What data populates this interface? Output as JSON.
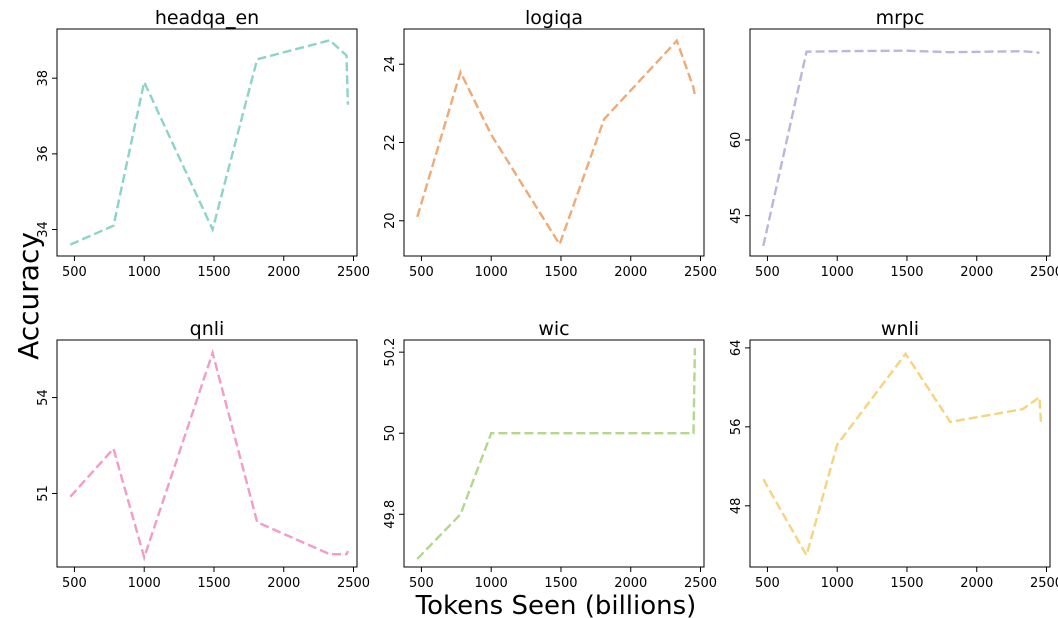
{
  "figure": {
    "ylabel": "Accuracy",
    "xlabel": "Tokens Seen (billions)"
  },
  "chart_data": [
    {
      "type": "line",
      "title": "headqa_en",
      "color": "#8dd3c7",
      "xlim": [
        375,
        2525
      ],
      "ylim": [
        33.3,
        39.3
      ],
      "xticks": [
        500,
        1000,
        1500,
        2000,
        2500
      ],
      "yticks": [
        34,
        36,
        38
      ],
      "x": [
        470,
        780,
        1000,
        1490,
        1810,
        2330,
        2450,
        2460
      ],
      "y": [
        33.6,
        34.1,
        37.9,
        34.0,
        38.5,
        39.0,
        38.6,
        37.3
      ]
    },
    {
      "type": "line",
      "title": "logiqa",
      "color": "#eeaa77",
      "xlim": [
        375,
        2525
      ],
      "ylim": [
        19.1,
        24.9
      ],
      "xticks": [
        500,
        1000,
        1500,
        2000,
        2500
      ],
      "yticks": [
        20,
        22,
        24
      ],
      "x": [
        470,
        780,
        1000,
        1490,
        1810,
        2330,
        2450,
        2460
      ],
      "y": [
        20.1,
        23.8,
        22.2,
        19.4,
        22.6,
        24.6,
        23.4,
        23.2
      ]
    },
    {
      "type": "line",
      "title": "mrpc",
      "color": "#bcb6dc",
      "xlim": [
        375,
        2525
      ],
      "ylim": [
        37,
        82
      ],
      "xticks": [
        500,
        1000,
        1500,
        2000,
        2500
      ],
      "yticks": [
        45,
        60
      ],
      "x": [
        470,
        780,
        1000,
        1490,
        1810,
        2330,
        2450
      ],
      "y": [
        39.0,
        77.5,
        77.6,
        77.7,
        77.4,
        77.6,
        77.3
      ]
    },
    {
      "type": "line",
      "title": "qnli",
      "color": "#f39cc7",
      "xlim": [
        375,
        2525
      ],
      "ylim": [
        48.7,
        55.8
      ],
      "xticks": [
        500,
        1000,
        1500,
        2000,
        2500
      ],
      "yticks": [
        51,
        54
      ],
      "x": [
        470,
        780,
        1000,
        1490,
        1810,
        2330,
        2450,
        2460
      ],
      "y": [
        50.9,
        52.4,
        49.0,
        55.4,
        50.1,
        49.1,
        49.1,
        49.2
      ]
    },
    {
      "type": "line",
      "title": "wic",
      "color": "#b5d68d",
      "xlim": [
        375,
        2525
      ],
      "ylim": [
        49.67,
        50.23
      ],
      "xticks": [
        500,
        1000,
        1500,
        2000,
        2500
      ],
      "yticks": [
        49.8,
        50.0,
        50.2
      ],
      "x": [
        470,
        780,
        1000,
        1490,
        1810,
        2330,
        2450,
        2460
      ],
      "y": [
        49.69,
        49.8,
        50.0,
        50.0,
        50.0,
        50.0,
        50.0,
        50.21
      ]
    },
    {
      "type": "line",
      "title": "wnli",
      "color": "#f5d47f",
      "xlim": [
        375,
        2525
      ],
      "ylim": [
        41.8,
        64.8
      ],
      "xticks": [
        500,
        1000,
        1500,
        2000,
        2500
      ],
      "yticks": [
        48,
        56,
        64
      ],
      "x": [
        470,
        780,
        1000,
        1490,
        1810,
        2330,
        2450,
        2460
      ],
      "y": [
        50.7,
        43.0,
        54.2,
        63.4,
        56.5,
        57.8,
        59.0,
        56.5
      ]
    }
  ]
}
